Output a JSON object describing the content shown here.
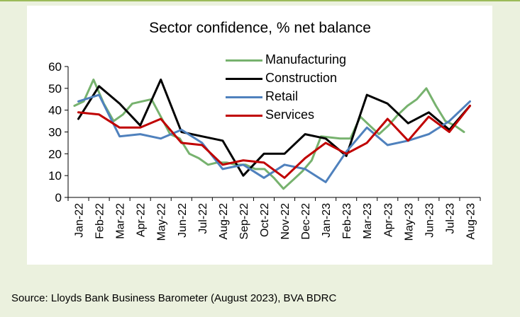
{
  "chart_data": {
    "type": "line",
    "title": "Sector confidence, % net balance",
    "xlabel": "",
    "ylabel": "",
    "ylim": [
      0,
      60
    ],
    "yticks": [
      0,
      10,
      20,
      30,
      40,
      50,
      60
    ],
    "grid": false,
    "legend_position": "top-center",
    "x": [
      "2022-01",
      "2022-02",
      "2022-03",
      "2022-04",
      "2022-05",
      "2022-06",
      "2022-07",
      "2022-08",
      "2022-09",
      "2022-10",
      "2022-11",
      "2022-12",
      "2023-01",
      "2023-02",
      "2023-03",
      "2023-04",
      "2023-05",
      "2023-06",
      "2023-07",
      "2023-08"
    ],
    "x_tick_labels": [
      "Jan-22",
      "Feb-22",
      "Mar-22",
      "Apr-22",
      "May-22",
      "Jun-22",
      "Jul-22",
      "Aug-22",
      "Sep-22",
      "Oct-22",
      "Nov-22",
      "Dec-22",
      "Jan-23",
      "Feb-23",
      "Mar-23",
      "Apr-23",
      "May-23",
      "Jun-23",
      "Jul-23",
      "Aug-23"
    ],
    "series": [
      {
        "name": "Manufacturing",
        "color": "#77b26e",
        "x": [
          "2022-01-10",
          "2022-01-24",
          "2022-02-07",
          "2022-02-21",
          "2022-03-07",
          "2022-03-21",
          "2022-04-04",
          "2022-04-18",
          "2022-05-02",
          "2022-05-16",
          "2022-05-30",
          "2022-06-13",
          "2022-06-27",
          "2022-07-11",
          "2022-07-25",
          "2022-08-08",
          "2022-08-22",
          "2022-09-05",
          "2022-09-19",
          "2022-10-03",
          "2022-10-17",
          "2022-10-31",
          "2022-11-14",
          "2022-11-28",
          "2022-12-12",
          "2022-12-26",
          "2023-01-09",
          "2023-01-23",
          "2023-02-06",
          "2023-02-20",
          "2023-03-06",
          "2023-03-20",
          "2023-04-03",
          "2023-04-17",
          "2023-05-01",
          "2023-05-15",
          "2023-05-29",
          "2023-06-12",
          "2023-06-26",
          "2023-07-10",
          "2023-07-24",
          "2023-08-07"
        ],
        "values": [
          42,
          44,
          54,
          43,
          35,
          38,
          43,
          44,
          45,
          37,
          29,
          27,
          20,
          18,
          15,
          16,
          16,
          15,
          15,
          13,
          13,
          9,
          4,
          8,
          12,
          17,
          28,
          27.5,
          27,
          27,
          37,
          33,
          29,
          33,
          38,
          42,
          45,
          50,
          42,
          35,
          33,
          30
        ]
      },
      {
        "name": "Construction",
        "color": "#000000",
        "x": [
          "2022-01",
          "2022-02",
          "2022-03",
          "2022-04",
          "2022-05",
          "2022-06",
          "2022-07",
          "2022-08",
          "2022-09",
          "2022-10",
          "2022-11",
          "2022-12",
          "2023-01",
          "2023-02",
          "2023-03",
          "2023-04",
          "2023-05",
          "2023-06",
          "2023-07",
          "2023-08"
        ],
        "values": [
          36,
          51,
          43,
          33,
          54,
          30,
          28,
          26,
          10,
          20,
          20,
          29,
          27,
          19,
          47,
          43,
          34,
          39,
          31,
          42
        ]
      },
      {
        "name": "Retail",
        "color": "#4f81bd",
        "x": [
          "2022-01",
          "2022-02",
          "2022-03",
          "2022-04",
          "2022-05",
          "2022-06",
          "2022-07",
          "2022-08",
          "2022-09",
          "2022-10",
          "2022-11",
          "2022-12",
          "2023-01",
          "2023-02",
          "2023-03",
          "2023-04",
          "2023-05",
          "2023-06",
          "2023-07",
          "2023-08"
        ],
        "values": [
          44,
          47,
          28,
          29,
          27,
          31,
          25,
          13,
          15,
          9,
          15,
          13,
          7,
          21,
          32,
          24,
          26,
          29,
          35,
          44
        ]
      },
      {
        "name": "Services",
        "color": "#c00000",
        "x": [
          "2022-01",
          "2022-02",
          "2022-03",
          "2022-04",
          "2022-05",
          "2022-06",
          "2022-07",
          "2022-08",
          "2022-09",
          "2022-10",
          "2022-11",
          "2022-12",
          "2023-01",
          "2023-02",
          "2023-03",
          "2023-04",
          "2023-05",
          "2023-06",
          "2023-07",
          "2023-08"
        ],
        "values": [
          39,
          38,
          32,
          32,
          36,
          25,
          24,
          15,
          17,
          16,
          9,
          18,
          25,
          20,
          25,
          36,
          26,
          37,
          30,
          42
        ]
      }
    ]
  },
  "source": "Source: Lloyds Bank Business Barometer (August 2023), BVA BDRC"
}
